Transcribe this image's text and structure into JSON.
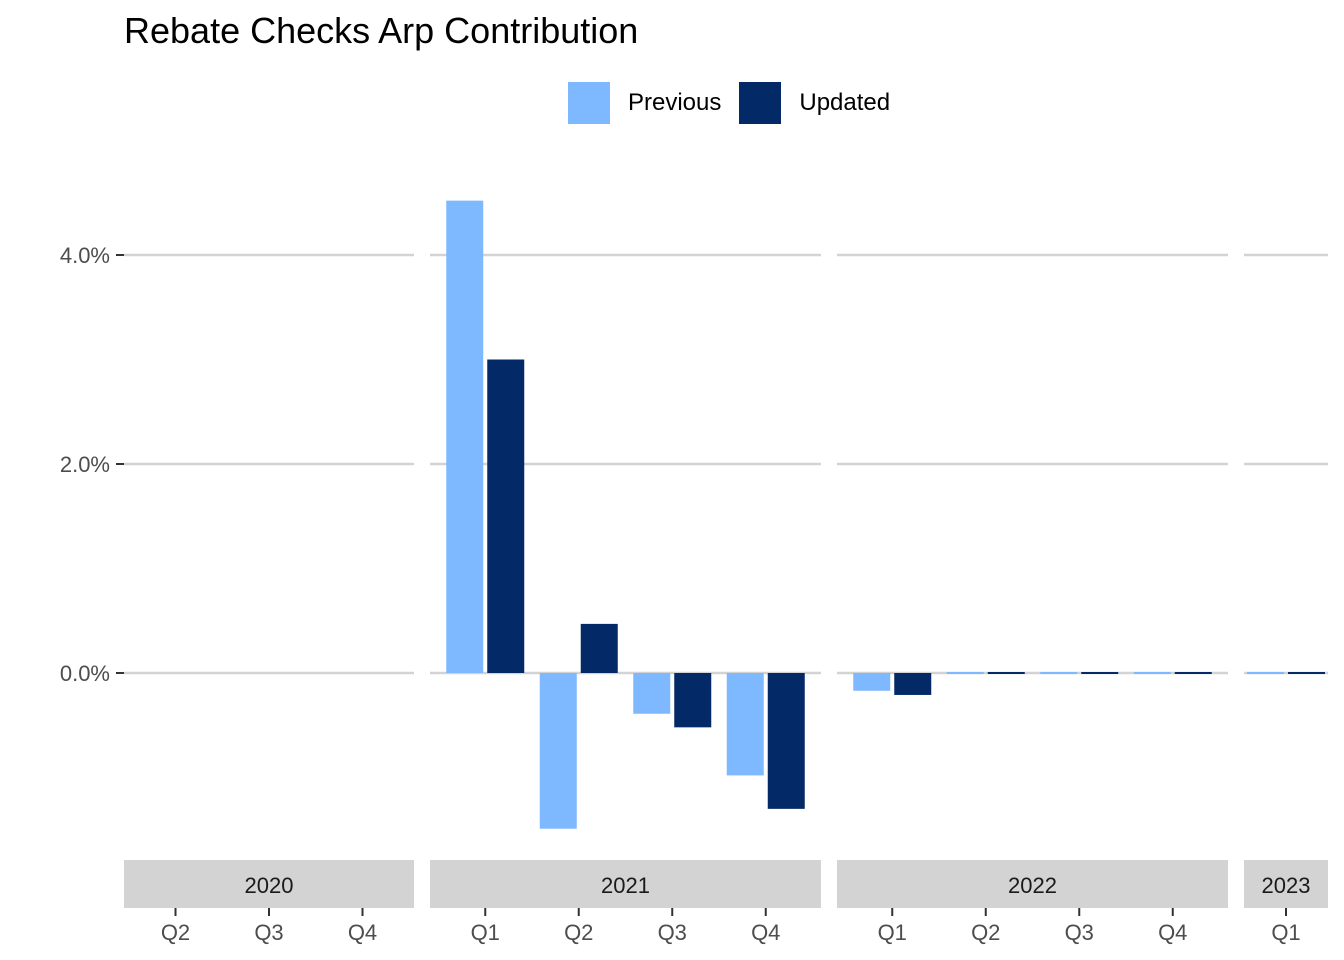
{
  "chart_data": {
    "type": "bar",
    "title": "Rebate Checks Arp Contribution",
    "xlabel": "",
    "ylabel": "",
    "ylim": [
      -1.6,
      4.8
    ],
    "yticks": [
      {
        "value": 0.0,
        "label": "0.0%"
      },
      {
        "value": 2.0,
        "label": "2.0%"
      },
      {
        "value": 4.0,
        "label": "4.0%"
      }
    ],
    "legend": {
      "position": "top",
      "entries": [
        "Previous",
        "Updated"
      ]
    },
    "colors": {
      "Previous": "#7EB8FF",
      "Updated": "#032966"
    },
    "facets": [
      {
        "year": "2020",
        "quarters": [
          "Q2",
          "Q3",
          "Q4"
        ],
        "series": [
          {
            "name": "Previous",
            "values": [
              null,
              null,
              null
            ]
          },
          {
            "name": "Updated",
            "values": [
              null,
              null,
              null
            ]
          }
        ]
      },
      {
        "year": "2021",
        "quarters": [
          "Q1",
          "Q2",
          "Q3",
          "Q4"
        ],
        "series": [
          {
            "name": "Previous",
            "values": [
              4.52,
              -1.49,
              -0.39,
              -0.98
            ]
          },
          {
            "name": "Updated",
            "values": [
              3.0,
              0.47,
              -0.52,
              -1.3
            ]
          }
        ]
      },
      {
        "year": "2022",
        "quarters": [
          "Q1",
          "Q2",
          "Q3",
          "Q4"
        ],
        "series": [
          {
            "name": "Previous",
            "values": [
              -0.17,
              0.0,
              0.0,
              0.0
            ]
          },
          {
            "name": "Updated",
            "values": [
              -0.21,
              0.0,
              0.0,
              0.0
            ]
          }
        ]
      },
      {
        "year": "2023",
        "quarters": [
          "Q1"
        ],
        "series": [
          {
            "name": "Previous",
            "values": [
              0.0
            ]
          },
          {
            "name": "Updated",
            "values": [
              0.0
            ]
          }
        ]
      }
    ]
  }
}
